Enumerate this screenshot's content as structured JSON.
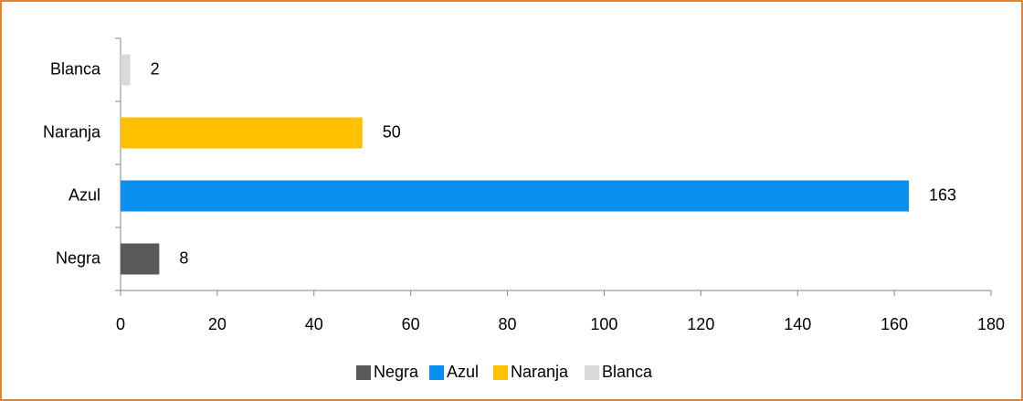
{
  "chart_data": {
    "type": "bar",
    "orientation": "horizontal",
    "categories": [
      "Negra",
      "Azul",
      "Naranja",
      "Blanca"
    ],
    "values": [
      8,
      163,
      50,
      2
    ],
    "colors": [
      "#595959",
      "#0a8ef0",
      "#ffc000",
      "#d9d9d9"
    ],
    "xlim": [
      0,
      180
    ],
    "xticks": [
      0,
      20,
      40,
      60,
      80,
      100,
      120,
      140,
      160,
      180
    ],
    "legend": "bottom",
    "data_labels": true
  }
}
